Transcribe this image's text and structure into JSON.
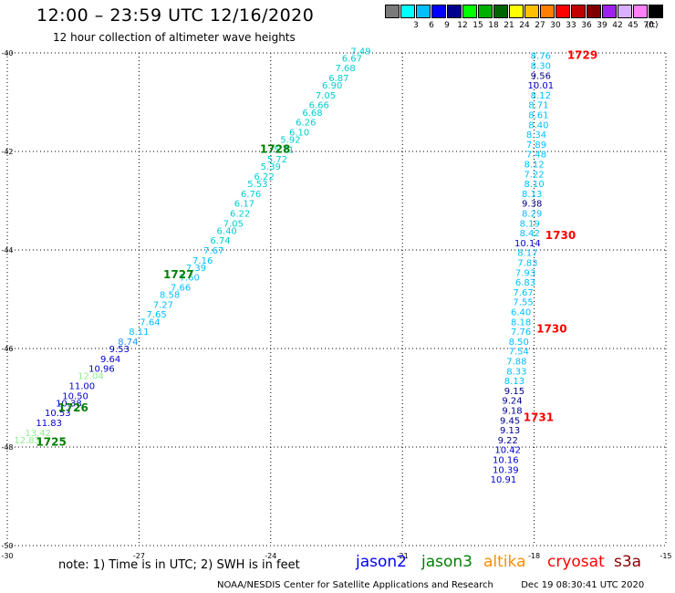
{
  "header": {
    "title": "12:00 – 23:59 UTC 12/16/2020",
    "subtitle": "12 hour collection of altimeter wave heights"
  },
  "colorbar": {
    "unit": "(ft)",
    "items": [
      {
        "label": "",
        "color": "#7a7a7a"
      },
      {
        "label": "3",
        "color": "#00ffff"
      },
      {
        "label": "6",
        "color": "#00bfff"
      },
      {
        "label": "9",
        "color": "#0000ff"
      },
      {
        "label": "12",
        "color": "#00008b"
      },
      {
        "label": "15",
        "color": "#00ff00"
      },
      {
        "label": "18",
        "color": "#00b000"
      },
      {
        "label": "21",
        "color": "#006400"
      },
      {
        "label": "24",
        "color": "#ffff00"
      },
      {
        "label": "27",
        "color": "#ffc000"
      },
      {
        "label": "30",
        "color": "#ff8000"
      },
      {
        "label": "33",
        "color": "#ff0000"
      },
      {
        "label": "36",
        "color": "#c00000"
      },
      {
        "label": "39",
        "color": "#800000"
      },
      {
        "label": "42",
        "color": "#a020f0"
      },
      {
        "label": "45",
        "color": "#d8b0ff"
      },
      {
        "label": "70",
        "color": "#ff80ff"
      },
      {
        "label": "",
        "color": "#000000"
      }
    ]
  },
  "note": "note: 1) Time is in UTC; 2) SWH is in feet",
  "satellites": [
    {
      "name": "jason2",
      "color": "#0000ff"
    },
    {
      "name": "jason3",
      "color": "#008000"
    },
    {
      "name": "altika",
      "color": "#ff8c00"
    },
    {
      "name": "cryosat",
      "color": "#ff0000"
    },
    {
      "name": "s3a",
      "color": "#8b0000"
    }
  ],
  "footer": {
    "center": "NOAA/NESDIS Center for Satellite Applications and Research",
    "timestamp": "Dec 19 08:30:41 UTC 2020"
  },
  "chart_data": {
    "type": "scatter",
    "xlim": [
      -30,
      -15
    ],
    "ylim": [
      -50,
      -40
    ],
    "x_ticks": [
      -30,
      -27,
      -24,
      -21,
      -18,
      -15
    ],
    "y_ticks": [
      -40,
      -42,
      -44,
      -46,
      -48,
      -50
    ],
    "grid": true,
    "time_labels": [
      {
        "text": "1725",
        "lon": -29.0,
        "lat": -47.9,
        "color": "#008000"
      },
      {
        "text": "1726",
        "lon": -28.5,
        "lat": -47.2,
        "color": "#008000"
      },
      {
        "text": "1727",
        "lon": -26.1,
        "lat": -44.5,
        "color": "#008000"
      },
      {
        "text": "1728",
        "lon": -23.9,
        "lat": -41.95,
        "color": "#008000"
      },
      {
        "text": "1729",
        "lon": -16.9,
        "lat": -40.05,
        "color": "#ff0000"
      },
      {
        "text": "1730",
        "lon": -17.4,
        "lat": -43.7,
        "color": "#ff0000"
      },
      {
        "text": "1730",
        "lon": -17.6,
        "lat": -45.6,
        "color": "#ff0000"
      },
      {
        "text": "1731",
        "lon": -17.9,
        "lat": -47.4,
        "color": "#ff0000"
      }
    ],
    "tracks": [
      {
        "name": "",
        "points": [
          {
            "lon": -29.55,
            "lat": -47.85,
            "value": "12.83",
            "color": "#90ee90"
          },
          {
            "lon": -29.3,
            "lat": -47.7,
            "value": "13.42",
            "color": "#90ee90"
          },
          {
            "lon": -29.05,
            "lat": -47.5,
            "value": "11.83",
            "color": "#0000cd"
          },
          {
            "lon": -28.85,
            "lat": -47.3,
            "value": "10.53",
            "color": "#0000cd"
          },
          {
            "lon": -28.6,
            "lat": -47.1,
            "value": "10.38",
            "color": "#0000cd"
          },
          {
            "lon": -28.45,
            "lat": -46.95,
            "value": "10.50",
            "color": "#0000cd"
          },
          {
            "lon": -28.3,
            "lat": -46.75,
            "value": "11.00",
            "color": "#0000cd"
          },
          {
            "lon": -28.1,
            "lat": -46.55,
            "value": "12.04",
            "color": "#90ee90"
          },
          {
            "lon": -27.85,
            "lat": -46.4,
            "value": "10.96",
            "color": "#0000cd"
          },
          {
            "lon": -27.65,
            "lat": -46.2,
            "value": "9.64",
            "color": "#0000cd"
          },
          {
            "lon": -27.45,
            "lat": -46.0,
            "value": "9.53",
            "color": "#0000cd"
          },
          {
            "lon": -27.25,
            "lat": -45.85,
            "value": "8.74",
            "color": "#1e90ff"
          },
          {
            "lon": -27.0,
            "lat": -45.65,
            "value": "8.11",
            "color": "#00bfff"
          },
          {
            "lon": -26.75,
            "lat": -45.45,
            "value": "7.64",
            "color": "#00bfff"
          },
          {
            "lon": -26.6,
            "lat": -45.3,
            "value": "7.65",
            "color": "#00bfff"
          },
          {
            "lon": -26.45,
            "lat": -45.1,
            "value": "7.27",
            "color": "#00bfff"
          },
          {
            "lon": -26.3,
            "lat": -44.9,
            "value": "8.58",
            "color": "#00bfff"
          },
          {
            "lon": -26.05,
            "lat": -44.75,
            "value": "7.66",
            "color": "#00bfff"
          },
          {
            "lon": -25.85,
            "lat": -44.55,
            "value": "7.60",
            "color": "#00bfff"
          },
          {
            "lon": -25.7,
            "lat": -44.35,
            "value": "7.39",
            "color": "#00bfff"
          },
          {
            "lon": -25.55,
            "lat": -44.2,
            "value": "7.16",
            "color": "#00bfff"
          },
          {
            "lon": -25.3,
            "lat": -44.0,
            "value": "7.67",
            "color": "#00bfff"
          },
          {
            "lon": -25.15,
            "lat": -43.8,
            "value": "6.74",
            "color": "#00ced1"
          },
          {
            "lon": -25.0,
            "lat": -43.6,
            "value": "6.40",
            "color": "#00ced1"
          },
          {
            "lon": -24.85,
            "lat": -43.45,
            "value": "7.05",
            "color": "#00ced1"
          },
          {
            "lon": -24.7,
            "lat": -43.25,
            "value": "6.22",
            "color": "#00ced1"
          },
          {
            "lon": -24.6,
            "lat": -43.05,
            "value": "6.17",
            "color": "#00ced1"
          },
          {
            "lon": -24.45,
            "lat": -42.85,
            "value": "6.76",
            "color": "#00ced1"
          },
          {
            "lon": -24.3,
            "lat": -42.65,
            "value": "5.53",
            "color": "#00ced1"
          },
          {
            "lon": -24.15,
            "lat": -42.5,
            "value": "6.22",
            "color": "#00ced1"
          },
          {
            "lon": -24.0,
            "lat": -42.3,
            "value": "5.39",
            "color": "#00ced1"
          },
          {
            "lon": -23.85,
            "lat": -42.15,
            "value": "5.72",
            "color": "#00ced1"
          },
          {
            "lon": -23.7,
            "lat": -41.95,
            "value": "5.71",
            "color": "#00ced1"
          },
          {
            "lon": -23.55,
            "lat": -41.75,
            "value": "5.92",
            "color": "#00ced1"
          },
          {
            "lon": -23.35,
            "lat": -41.6,
            "value": "6.10",
            "color": "#00ced1"
          },
          {
            "lon": -23.2,
            "lat": -41.4,
            "value": "6.26",
            "color": "#00ced1"
          },
          {
            "lon": -23.05,
            "lat": -41.2,
            "value": "6.68",
            "color": "#00ced1"
          },
          {
            "lon": -22.9,
            "lat": -41.05,
            "value": "6.66",
            "color": "#00ced1"
          },
          {
            "lon": -22.75,
            "lat": -40.85,
            "value": "7.05",
            "color": "#00ced1"
          },
          {
            "lon": -22.6,
            "lat": -40.65,
            "value": "6.90",
            "color": "#00ced1"
          },
          {
            "lon": -22.45,
            "lat": -40.5,
            "value": "6.87",
            "color": "#00ced1"
          },
          {
            "lon": -22.3,
            "lat": -40.3,
            "value": "7.68",
            "color": "#00ced1"
          },
          {
            "lon": -22.15,
            "lat": -40.1,
            "value": "6.67",
            "color": "#00ced1"
          },
          {
            "lon": -21.95,
            "lat": -39.95,
            "value": "7.49",
            "color": "#00ced1"
          }
        ]
      },
      {
        "name": "",
        "points": [
          {
            "lon": -17.85,
            "lat": -40.05,
            "value": "8.76",
            "color": "#00bfff"
          },
          {
            "lon": -17.85,
            "lat": -40.25,
            "value": "8.30",
            "color": "#00bfff"
          },
          {
            "lon": -17.85,
            "lat": -40.45,
            "value": "9.56",
            "color": "#00008b"
          },
          {
            "lon": -17.85,
            "lat": -40.65,
            "value": "10.01",
            "color": "#0000cd"
          },
          {
            "lon": -17.85,
            "lat": -40.85,
            "value": "8.12",
            "color": "#00bfff"
          },
          {
            "lon": -17.9,
            "lat": -41.05,
            "value": "8.71",
            "color": "#00bfff"
          },
          {
            "lon": -17.9,
            "lat": -41.25,
            "value": "8.61",
            "color": "#00bfff"
          },
          {
            "lon": -17.9,
            "lat": -41.45,
            "value": "8.40",
            "color": "#00bfff"
          },
          {
            "lon": -17.95,
            "lat": -41.65,
            "value": "8.34",
            "color": "#00bfff"
          },
          {
            "lon": -17.95,
            "lat": -41.85,
            "value": "7.89",
            "color": "#00bfff"
          },
          {
            "lon": -17.95,
            "lat": -42.05,
            "value": "7.48",
            "color": "#00bfff"
          },
          {
            "lon": -18.0,
            "lat": -42.25,
            "value": "8.12",
            "color": "#00bfff"
          },
          {
            "lon": -18.0,
            "lat": -42.45,
            "value": "7.22",
            "color": "#00bfff"
          },
          {
            "lon": -18.0,
            "lat": -42.65,
            "value": "8.10",
            "color": "#00bfff"
          },
          {
            "lon": -18.05,
            "lat": -42.85,
            "value": "8.13",
            "color": "#00bfff"
          },
          {
            "lon": -18.05,
            "lat": -43.05,
            "value": "9.38",
            "color": "#00008b"
          },
          {
            "lon": -18.05,
            "lat": -43.25,
            "value": "8.29",
            "color": "#00bfff"
          },
          {
            "lon": -18.1,
            "lat": -43.45,
            "value": "8.19",
            "color": "#00bfff"
          },
          {
            "lon": -18.1,
            "lat": -43.65,
            "value": "8.42",
            "color": "#00bfff"
          },
          {
            "lon": -18.15,
            "lat": -43.85,
            "value": "10.14",
            "color": "#0000cd"
          },
          {
            "lon": -18.15,
            "lat": -44.05,
            "value": "8.17",
            "color": "#00bfff"
          },
          {
            "lon": -18.15,
            "lat": -44.25,
            "value": "7.83",
            "color": "#00bfff"
          },
          {
            "lon": -18.2,
            "lat": -44.45,
            "value": "7.93",
            "color": "#00bfff"
          },
          {
            "lon": -18.2,
            "lat": -44.65,
            "value": "6.83",
            "color": "#00bfff"
          },
          {
            "lon": -18.25,
            "lat": -44.85,
            "value": "7.67",
            "color": "#00bfff"
          },
          {
            "lon": -18.25,
            "lat": -45.05,
            "value": "7.55",
            "color": "#00bfff"
          },
          {
            "lon": -18.3,
            "lat": -45.25,
            "value": "6.40",
            "color": "#00bfff"
          },
          {
            "lon": -18.3,
            "lat": -45.45,
            "value": "8.18",
            "color": "#00bfff"
          },
          {
            "lon": -18.3,
            "lat": -45.65,
            "value": "7.76",
            "color": "#00bfff"
          },
          {
            "lon": -18.35,
            "lat": -45.85,
            "value": "8.50",
            "color": "#00bfff"
          },
          {
            "lon": -18.35,
            "lat": -46.05,
            "value": "7.54",
            "color": "#00bfff"
          },
          {
            "lon": -18.4,
            "lat": -46.25,
            "value": "7.88",
            "color": "#00bfff"
          },
          {
            "lon": -18.4,
            "lat": -46.45,
            "value": "8.33",
            "color": "#00bfff"
          },
          {
            "lon": -18.45,
            "lat": -46.65,
            "value": "8.13",
            "color": "#00bfff"
          },
          {
            "lon": -18.45,
            "lat": -46.85,
            "value": "9.15",
            "color": "#00008b"
          },
          {
            "lon": -18.5,
            "lat": -47.05,
            "value": "9.24",
            "color": "#00008b"
          },
          {
            "lon": -18.5,
            "lat": -47.25,
            "value": "9.18",
            "color": "#00008b"
          },
          {
            "lon": -18.55,
            "lat": -47.45,
            "value": "9.45",
            "color": "#00008b"
          },
          {
            "lon": -18.55,
            "lat": -47.65,
            "value": "9.13",
            "color": "#00008b"
          },
          {
            "lon": -18.6,
            "lat": -47.85,
            "value": "9.22",
            "color": "#00008b"
          },
          {
            "lon": -18.6,
            "lat": -48.05,
            "value": "10.42",
            "color": "#0000cd"
          },
          {
            "lon": -18.65,
            "lat": -48.25,
            "value": "10.16",
            "color": "#0000cd"
          },
          {
            "lon": -18.65,
            "lat": -48.45,
            "value": "10.39",
            "color": "#0000cd"
          },
          {
            "lon": -18.7,
            "lat": -48.65,
            "value": "10.91",
            "color": "#0000cd"
          }
        ]
      }
    ]
  }
}
